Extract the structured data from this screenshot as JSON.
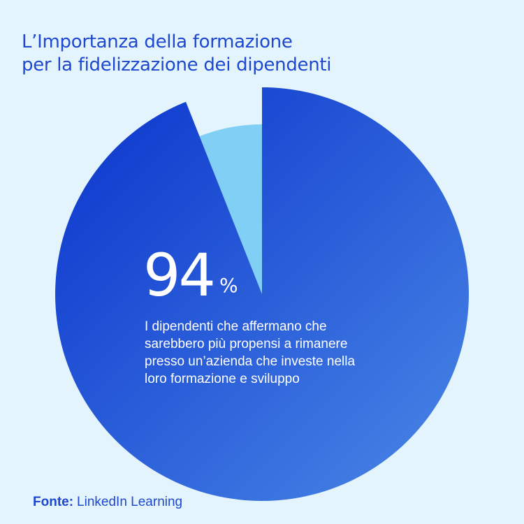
{
  "title_lines": [
    "L’Importanza della formazione",
    "per la fidelizzazione dei dipendenti"
  ],
  "chart_data": {
    "type": "pie",
    "slices": [
      {
        "label": "I dipendenti che affermano che sarebbero più propensi a rimanere presso un’azienda che investe nella loro formazione e sviluppo",
        "value": 94,
        "color": "#1d4fd8"
      },
      {
        "label": "",
        "value": 6,
        "color": "#82cff5"
      }
    ],
    "value_label": "94",
    "unit": "%",
    "description_lines": [
      "I dipendenti che affermano che",
      "sarebbero più propensi a rimanere",
      "presso un’azienda che investe nella",
      "loro formazione e sviluppo"
    ]
  },
  "source": {
    "label": "Fonte:",
    "value": "LinkedIn Learning"
  },
  "colors": {
    "background": "#e4f4fc",
    "accent": "#1e48d0",
    "main_slice_dark": "#0a33cc",
    "main_slice_light": "#4a88e6",
    "minor_slice": "#82cff5"
  }
}
